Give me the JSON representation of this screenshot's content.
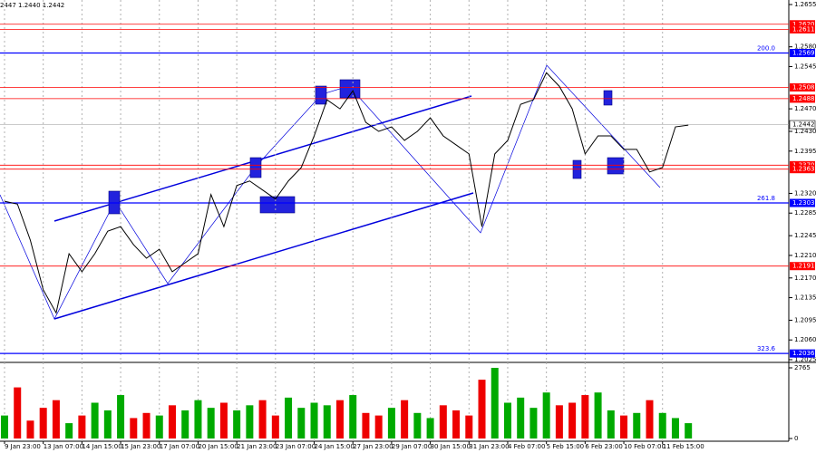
{
  "chart_data": {
    "type": "line",
    "header": "2447 1.2440 1.2442",
    "color": "#000000",
    "up_color": "#00aa00",
    "down_color": "#ee0000",
    "grid": true,
    "categories": [
      "9 Jan 23:00",
      null,
      null,
      "13 Jan 07:00",
      null,
      null,
      "14 Jan 15:00",
      null,
      null,
      "15 Jan 23:00",
      null,
      null,
      "17 Jan 07:00",
      null,
      null,
      "20 Jan 15:00",
      null,
      null,
      "21 Jan 23:00",
      null,
      null,
      "23 Jan 07:00",
      null,
      null,
      "24 Jan 15:00",
      null,
      null,
      "27 Jan 23:00",
      null,
      null,
      "29 Jan 07:00",
      null,
      null,
      "30 Jan 15:00",
      null,
      null,
      "31 Jan 23:00",
      null,
      null,
      "4 Feb 07:00",
      null,
      null,
      "5 Feb 15:00",
      null,
      null,
      "6 Feb 23:00",
      null,
      null,
      "10 Feb 07:00",
      null,
      null,
      "11 Feb 15:00",
      null,
      null
    ],
    "values": [
      1.2306,
      1.2301,
      1.2237,
      1.2149,
      1.2108,
      1.2213,
      1.2181,
      1.2213,
      1.2253,
      1.2261,
      1.2229,
      1.2205,
      1.2221,
      1.2181,
      1.2197,
      1.2213,
      1.2318,
      1.2261,
      1.2334,
      1.2342,
      1.2326,
      1.231,
      1.2342,
      1.2366,
      1.2422,
      1.2486,
      1.247,
      1.2502,
      1.2446,
      1.243,
      1.2438,
      1.2414,
      1.243,
      1.2454,
      1.2422,
      1.2406,
      1.239,
      1.2261,
      1.239,
      1.2414,
      1.2478,
      1.2486,
      1.2534,
      1.251,
      1.247,
      1.239,
      1.2422,
      1.2422,
      1.2398,
      1.2398,
      1.2358,
      1.2366,
      1.2438,
      1.2441
    ],
    "ylim": [
      1.2025,
      1.2655
    ],
    "yticks": [
      1.2655,
      {
        "value": 1.258,
        "label": "1.2580"
      },
      1.2545,
      {
        "value": 1.247,
        "label": "1.2470"
      },
      {
        "value": 1.243,
        "label": "1.2430"
      },
      1.2395,
      {
        "value": 1.232,
        "label": "1.2320"
      },
      1.2285,
      1.2245,
      {
        "value": 1.221,
        "label": "1.2210"
      },
      {
        "value": 1.217,
        "label": "1.2170"
      },
      1.2135,
      1.2095,
      {
        "value": 1.206,
        "label": "1.2060"
      },
      1.2025
    ],
    "levels": [
      {
        "value": 1.262,
        "label": "1.2620",
        "color": "#ff0000"
      },
      {
        "value": 1.2611,
        "color": "#ff0000"
      },
      {
        "value": 1.2508,
        "color": "#ff0000"
      },
      {
        "value": 1.2488,
        "color": "#ff0000"
      },
      {
        "value": 1.237,
        "label": "1.2370",
        "color": "#ff0000"
      },
      {
        "value": 1.2363,
        "color": "#ff0000"
      },
      {
        "value": 1.2191,
        "color": "#ff0000"
      },
      {
        "value": 1.2569,
        "color": "#0000ff",
        "fib": "200.0"
      },
      {
        "value": 1.2303,
        "color": "#0000ff",
        "fib": "261.8"
      },
      {
        "value": 1.2036,
        "color": "#0000ff",
        "fib": "323.6"
      }
    ],
    "last_price": 1.2442,
    "volume": {
      "values": [
        900,
        2000,
        700,
        1200,
        1500,
        600,
        900,
        1400,
        1100,
        1700,
        800,
        1000,
        900,
        1300,
        1100,
        1500,
        1200,
        1400,
        1100,
        1300,
        1500,
        900,
        1600,
        1200,
        1400,
        1300,
        1500,
        1700,
        1000,
        900,
        1200,
        1500,
        1000,
        800,
        1300,
        1100,
        900,
        2300,
        2765,
        1400,
        1600,
        1200,
        1800,
        1300,
        1400,
        1700,
        1800,
        1100,
        900,
        1000,
        1500,
        1000,
        800,
        600
      ],
      "ylim": [
        0,
        2765
      ],
      "yticks": [
        0,
        2765
      ]
    }
  }
}
